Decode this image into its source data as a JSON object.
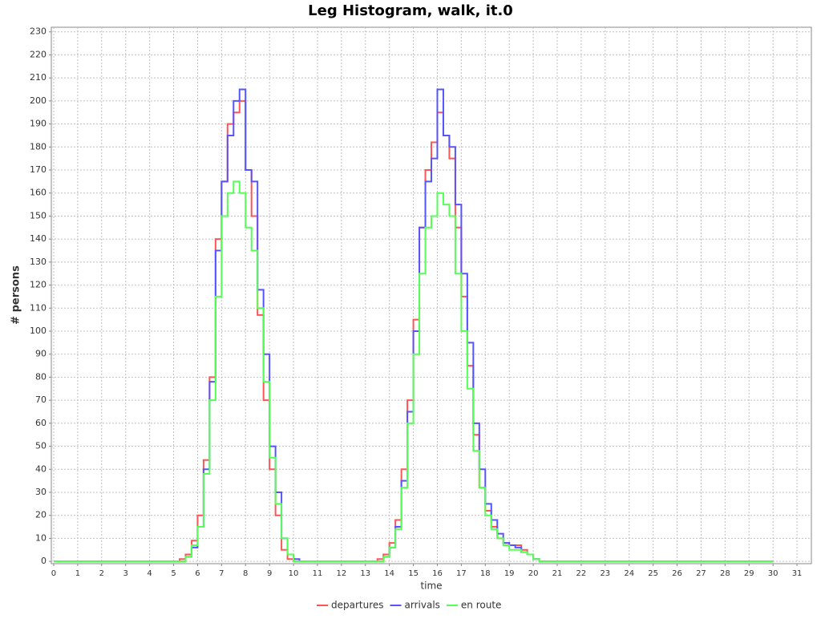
{
  "chart_data": {
    "type": "step",
    "title": "Leg Histogram, walk, it.0",
    "x_label": "time",
    "y_label": "# persons",
    "x": [
      0,
      5,
      5.25,
      5.5,
      5.75,
      6,
      6.25,
      6.5,
      6.75,
      7,
      7.25,
      7.5,
      7.75,
      8,
      8.25,
      8.5,
      8.75,
      9,
      9.25,
      9.5,
      9.75,
      10,
      10.25,
      13.25,
      13.5,
      13.75,
      14,
      14.25,
      14.5,
      14.75,
      15,
      15.25,
      15.5,
      15.75,
      16,
      16.25,
      16.5,
      16.75,
      17,
      17.25,
      17.5,
      17.75,
      18,
      18.25,
      18.5,
      18.75,
      19,
      19.25,
      19.5,
      19.75,
      20,
      20.25,
      20.5,
      30
    ],
    "series": [
      {
        "name": "departures",
        "color": "#ff5555",
        "values": [
          0,
          0,
          1,
          3,
          9,
          20,
          44,
          80,
          140,
          165,
          190,
          195,
          200,
          170,
          150,
          107,
          70,
          40,
          20,
          5,
          1,
          0,
          0,
          0,
          1,
          3,
          8,
          18,
          40,
          70,
          105,
          145,
          170,
          182,
          195,
          185,
          175,
          145,
          115,
          85,
          55,
          32,
          22,
          15,
          10,
          8,
          7,
          7,
          5,
          3,
          1,
          0,
          0,
          0
        ]
      },
      {
        "name": "arrivals",
        "color": "#5555ff",
        "values": [
          0,
          0,
          0,
          2,
          6,
          15,
          40,
          78,
          135,
          165,
          185,
          200,
          205,
          170,
          165,
          118,
          90,
          50,
          30,
          10,
          3,
          1,
          0,
          0,
          0,
          2,
          6,
          15,
          35,
          65,
          100,
          145,
          165,
          175,
          205,
          185,
          180,
          155,
          125,
          95,
          60,
          40,
          25,
          18,
          12,
          8,
          7,
          6,
          4,
          3,
          1,
          0,
          0,
          0
        ]
      },
      {
        "name": "en route",
        "color": "#55ff55",
        "values": [
          0,
          0,
          0,
          2,
          7,
          15,
          38,
          70,
          115,
          150,
          160,
          165,
          160,
          145,
          135,
          110,
          78,
          45,
          25,
          10,
          3,
          0,
          0,
          0,
          0,
          2,
          6,
          14,
          32,
          60,
          90,
          125,
          145,
          150,
          160,
          155,
          150,
          125,
          100,
          75,
          48,
          32,
          20,
          14,
          10,
          7,
          5,
          5,
          4,
          3,
          1,
          0,
          0,
          0
        ]
      }
    ],
    "xlim": [
      -0.1,
      31.6
    ],
    "ylim": [
      -1,
      232
    ],
    "xticks": [
      0,
      1,
      2,
      3,
      4,
      5,
      6,
      7,
      8,
      9,
      10,
      11,
      12,
      13,
      14,
      15,
      16,
      17,
      18,
      19,
      20,
      21,
      22,
      23,
      24,
      25,
      26,
      27,
      28,
      29,
      30,
      31
    ],
    "yticks": [
      0,
      10,
      20,
      30,
      40,
      50,
      60,
      70,
      80,
      90,
      100,
      110,
      120,
      130,
      140,
      150,
      160,
      170,
      180,
      190,
      200,
      210,
      220,
      230
    ],
    "grid": true,
    "legend": "bottom"
  }
}
